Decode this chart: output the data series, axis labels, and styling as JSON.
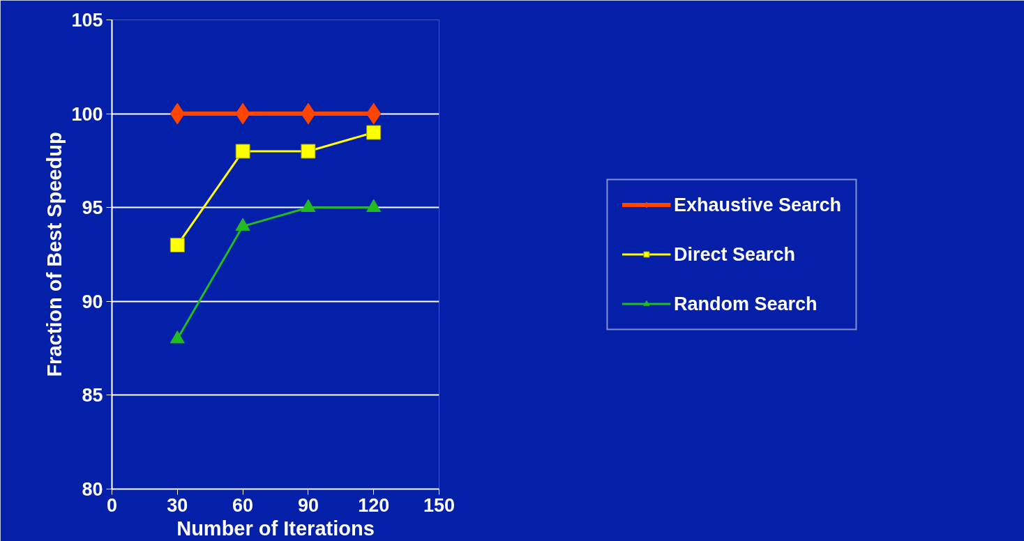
{
  "chart_data": {
    "type": "line",
    "xlabel": "Number of Iterations",
    "ylabel": "Fraction of Best Speedup",
    "x": [
      30,
      60,
      90,
      120
    ],
    "xlim": [
      0,
      150
    ],
    "xticks": [
      0,
      30,
      60,
      90,
      120,
      150
    ],
    "ylim": [
      80,
      105
    ],
    "yticks": [
      80,
      85,
      90,
      95,
      100,
      105
    ],
    "grid": "y",
    "legend": "right",
    "series": [
      {
        "name": "Exhaustive Search",
        "color": "#ff4500",
        "marker": "diamond",
        "values": [
          100,
          100,
          100,
          100
        ]
      },
      {
        "name": "Direct Search",
        "color": "#ffff00",
        "marker": "square",
        "values": [
          93,
          98,
          98,
          99
        ]
      },
      {
        "name": "Random Search",
        "color": "#22bb22",
        "marker": "triangle",
        "values": [
          88,
          94,
          95,
          95
        ]
      }
    ]
  }
}
